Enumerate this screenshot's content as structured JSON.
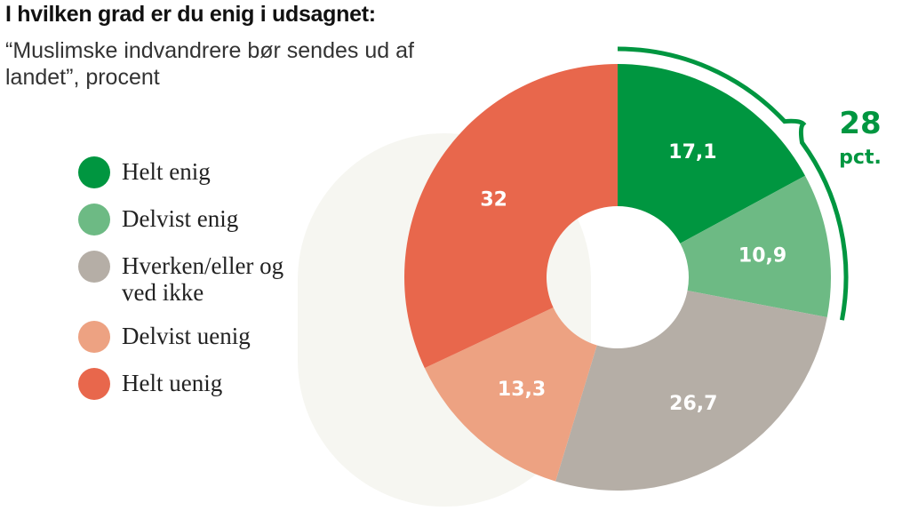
{
  "chart_data": {
    "type": "pie",
    "title": "I hvilken grad er du enig i udsagnet:",
    "subtitle": "“Muslimske indvandrere bør sendes ud af landet”, procent",
    "categories": [
      "Helt enig",
      "Delvist enig",
      "Hverken/eller og ved ikke",
      "Delvist uenig",
      "Helt uenig"
    ],
    "values": [
      17.1,
      10.9,
      26.7,
      13.3,
      32
    ],
    "value_labels": [
      "17,1",
      "10,9",
      "26,7",
      "13,3",
      "32"
    ],
    "colors": [
      "#009640",
      "#6dba84",
      "#b5aea6",
      "#eda282",
      "#e8674c"
    ],
    "donut": true,
    "legend_position": "left",
    "annotation": {
      "value": "28",
      "unit": "pct.",
      "covers": [
        "Helt enig",
        "Delvist enig"
      ],
      "color": "#009640"
    }
  }
}
